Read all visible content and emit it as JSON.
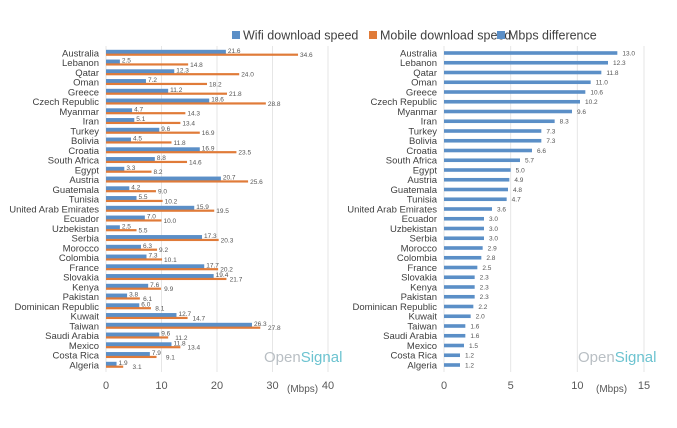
{
  "colors": {
    "wifi": "#5b8fc7",
    "mobile": "#e07b39",
    "diff": "#5b8fc7",
    "grid": "#e6e6e6"
  },
  "chart_data": [
    {
      "type": "bar",
      "orientation": "horizontal",
      "legend": {
        "position": "top",
        "entries": [
          "Wifi download speed",
          "Mobile download speed"
        ]
      },
      "categories": [
        "Australia",
        "Lebanon",
        "Qatar",
        "Oman",
        "Greece",
        "Czech Republic",
        "Myanmar",
        "Iran",
        "Turkey",
        "Bolivia",
        "Croatia",
        "South Africa",
        "Egypt",
        "Austria",
        "Guatemala",
        "Tunisia",
        "United Arab Emirates",
        "Ecuador",
        "Uzbekistan",
        "Serbia",
        "Morocco",
        "Colombia",
        "France",
        "Slovakia",
        "Kenya",
        "Pakistan",
        "Dominican Republic",
        "Kuwait",
        "Taiwan",
        "Saudi Arabia",
        "Mexico",
        "Costa Rica",
        "Algeria"
      ],
      "series": [
        {
          "name": "Wifi download speed",
          "values": [
            21.6,
            2.5,
            12.3,
            7.2,
            11.2,
            18.6,
            4.7,
            5.1,
            9.6,
            4.5,
            16.9,
            8.8,
            3.3,
            20.7,
            4.2,
            5.5,
            15.9,
            7.0,
            2.5,
            17.3,
            6.3,
            7.3,
            17.7,
            19.4,
            7.6,
            3.8,
            6.0,
            12.7,
            26.3,
            9.6,
            11.8,
            7.9,
            1.9
          ],
          "labels": [
            "21.6",
            "2.5",
            "12.3",
            "7.2",
            "11.2",
            "18.6",
            "4.7",
            "5.1",
            "9.6",
            "4.5",
            "16.9",
            "8.8",
            "3.3",
            "20.7",
            "4.2",
            "5.5",
            "15.9",
            "7.0",
            "2.5",
            "17.3",
            "6.3",
            "7.3",
            "17.7",
            "19.4",
            "7.6",
            "3.8",
            "6.0",
            "12.7",
            "26.3",
            "9.6",
            "11.8",
            "7.9",
            "1.9"
          ]
        },
        {
          "name": "Mobile download speed",
          "values": [
            34.6,
            14.8,
            24.0,
            18.2,
            21.8,
            28.8,
            14.3,
            13.4,
            16.9,
            11.8,
            23.5,
            14.6,
            8.2,
            25.6,
            9.0,
            10.2,
            19.5,
            10.0,
            5.5,
            20.3,
            9.2,
            10.1,
            20.2,
            21.7,
            9.9,
            6.1,
            8.1,
            14.7,
            27.8,
            11.2,
            13.4,
            9.1,
            3.1
          ],
          "labels": [
            "34.6",
            "14.8",
            "24.0",
            "18.2",
            "21.8",
            "28.8",
            "14.3",
            "13.4",
            "16.9",
            "11.8",
            "23.5",
            "14.6",
            "8.2",
            "25.6",
            "9.0",
            "10.2",
            "19.5",
            "10.0",
            "5.5",
            "20.3",
            "9.2",
            "10.1",
            "20.2",
            "21.7",
            "9.9",
            "6.1",
            "8.1",
            "14.7",
            "27.8",
            "11.2",
            "13.4",
            "9.1",
            "3.1"
          ]
        }
      ],
      "xlim": [
        0,
        40
      ],
      "xticks": [
        "0",
        "10",
        "20",
        "30",
        "40"
      ],
      "xtick_values": [
        0,
        10,
        20,
        30,
        40
      ],
      "xlabel": "(Mbps)",
      "grid": true,
      "watermark": {
        "part1": "Open",
        "part2": "Signal"
      }
    },
    {
      "type": "bar",
      "orientation": "horizontal",
      "legend": {
        "position": "top",
        "entries": [
          "Mbps difference"
        ]
      },
      "categories": [
        "Australia",
        "Lebanon",
        "Qatar",
        "Oman",
        "Greece",
        "Czech Republic",
        "Myanmar",
        "Iran",
        "Turkey",
        "Bolivia",
        "Croatia",
        "South Africa",
        "Egypt",
        "Austria",
        "Guatemala",
        "Tunisia",
        "United Arab Emirates",
        "Ecuador",
        "Uzbekistan",
        "Serbia",
        "Morocco",
        "Colombia",
        "France",
        "Slovakia",
        "Kenya",
        "Pakistan",
        "Dominican Republic",
        "Kuwait",
        "Taiwan",
        "Saudi Arabia",
        "Mexico",
        "Costa Rica",
        "Algeria"
      ],
      "series": [
        {
          "name": "Mbps difference",
          "values": [
            13.0,
            12.3,
            11.8,
            11.0,
            10.6,
            10.2,
            9.6,
            8.3,
            7.3,
            7.3,
            6.6,
            5.7,
            5.0,
            4.9,
            4.8,
            4.7,
            3.6,
            3.0,
            3.0,
            3.0,
            2.9,
            2.8,
            2.5,
            2.3,
            2.3,
            2.3,
            2.2,
            2.0,
            1.6,
            1.6,
            1.5,
            1.2,
            1.2
          ],
          "labels": [
            "13.0",
            "12.3",
            "11.8",
            "11.0",
            "10.6",
            "10.2",
            "9.6",
            "8.3",
            "7.3",
            "7.3",
            "6.6",
            "5.7",
            "5.0",
            "4.9",
            "4.8",
            "4.7",
            "3.6",
            "3.0",
            "3.0",
            "3.0",
            "2.9",
            "2.8",
            "2.5",
            "2.3",
            "2.3",
            "2.3",
            "2.2",
            "2.0",
            "1.6",
            "1.6",
            "1.5",
            "1.2",
            "1.2"
          ]
        }
      ],
      "xlim": [
        0,
        15
      ],
      "xticks": [
        "0",
        "5",
        "10",
        "15"
      ],
      "xtick_values": [
        0,
        5,
        10,
        15
      ],
      "xlabel": "(Mbps)",
      "grid": true,
      "watermark": {
        "part1": "Open",
        "part2": "Signal"
      }
    }
  ]
}
